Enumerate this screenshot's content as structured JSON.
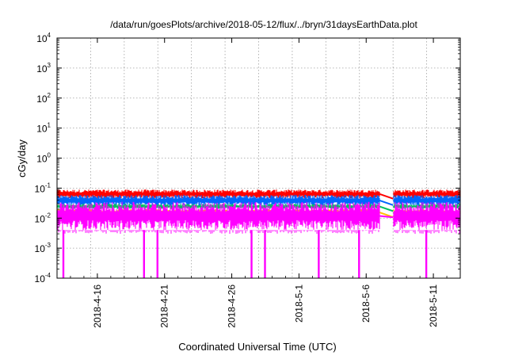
{
  "chart_data": {
    "type": "line",
    "title": "/data/run/goesPlots/archive/2018-05-12/flux/../bryn/31daysEarthData.plot",
    "xlabel": "Coordinated Universal Time (UTC)",
    "ylabel": "cGy/day",
    "yscale": "log",
    "ylim": [
      0.0001,
      10000
    ],
    "xlim": [
      "2018-04-13",
      "2018-05-13"
    ],
    "grid": true,
    "y_ticks": [
      {
        "base": "10",
        "exp": "-4",
        "value": 0.0001
      },
      {
        "base": "10",
        "exp": "-3",
        "value": 0.001
      },
      {
        "base": "10",
        "exp": "-2",
        "value": 0.01
      },
      {
        "base": "10",
        "exp": "-1",
        "value": 0.1
      },
      {
        "base": "10",
        "exp": "0",
        "value": 1
      },
      {
        "base": "10",
        "exp": "1",
        "value": 10
      },
      {
        "base": "10",
        "exp": "2",
        "value": 100
      },
      {
        "base": "10",
        "exp": "3",
        "value": 1000
      },
      {
        "base": "10",
        "exp": "4",
        "value": 10000
      }
    ],
    "x_ticks": [
      "2018-4-16",
      "2018-4-21",
      "2018-4-26",
      "2018-5-1",
      "2018-5-6",
      "2018-5-11"
    ],
    "data_gap": [
      "2018-05-07",
      "2018-05-08"
    ],
    "series": [
      {
        "color": "#ff0000",
        "level": [
          0.045,
          0.09
        ]
      },
      {
        "color": "#0066ff",
        "level": [
          0.025,
          0.06
        ]
      },
      {
        "color": "#00c060",
        "level": [
          0.02,
          0.03
        ]
      },
      {
        "color": "#ffbf00",
        "level": [
          0.012,
          0.02
        ]
      },
      {
        "color": "#ff00ff",
        "level": [
          0.004,
          0.035
        ]
      }
    ],
    "magenta_dropouts": [
      "2018-04-13",
      "2018-04-19",
      "2018-04-20",
      "2018-04-27",
      "2018-04-28",
      "2018-05-02",
      "2018-05-05",
      "2018-05-10"
    ]
  }
}
